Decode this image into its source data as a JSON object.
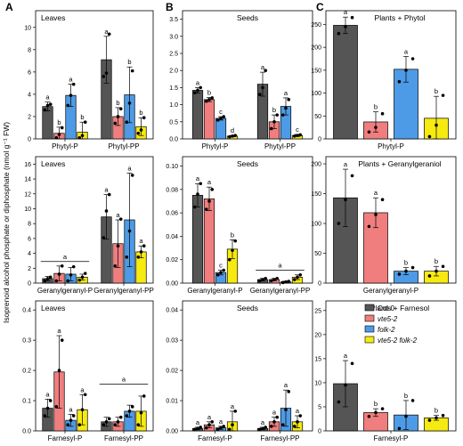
{
  "figure": {
    "ylabel": "Isoprenoid alcohol phosphate or diphosphate (nmol g⁻¹ FW)",
    "columns": [
      "A",
      "B",
      "C"
    ]
  },
  "legend": {
    "entries": [
      {
        "label": "Col-0",
        "color": "#555555",
        "italic": false
      },
      {
        "label": "vte5-2",
        "color": "#f07e7e",
        "italic": true
      },
      {
        "label": "folk-2",
        "color": "#4d9be6",
        "italic": true
      },
      {
        "label": "vte5-2 folk-2",
        "color": "#f6ea10",
        "italic": true
      }
    ]
  },
  "chart_data": [
    {
      "id": "A1",
      "type": "bar",
      "title": "Leaves",
      "yticks": [
        0,
        2,
        4,
        6,
        8,
        10
      ],
      "ylim": [
        0,
        11.5
      ],
      "categories": [
        "Phytyl-P",
        "Phytyl-PP"
      ],
      "series": [
        {
          "name": "Col-0",
          "values": [
            2.9,
            7.1
          ],
          "errors": [
            0.4,
            2.1
          ],
          "points": [
            [
              2.6,
              3.0,
              3.1
            ],
            [
              5.6,
              5.9,
              9.4
            ]
          ],
          "letters": [
            "a",
            "a"
          ]
        },
        {
          "name": "vte5-2",
          "values": [
            0.5,
            2.0
          ],
          "errors": [
            0.55,
            0.8
          ],
          "points": [
            [
              0.1,
              0.4,
              1.0
            ],
            [
              1.4,
              2.0,
              2.7
            ]
          ],
          "letters": [
            "b",
            "b"
          ]
        },
        {
          "name": "folk-2",
          "values": [
            3.9,
            3.95
          ],
          "errors": [
            1.0,
            2.5
          ],
          "points": [
            [
              3.0,
              3.9,
              4.9
            ],
            [
              1.5,
              3.2,
              6.1
            ]
          ],
          "letters": [
            "a",
            "b"
          ]
        },
        {
          "name": "vte5-2 folk-2",
          "values": [
            0.6,
            1.1
          ],
          "errors": [
            0.9,
            0.8
          ],
          "points": [
            [
              0.1,
              0.3,
              1.5
            ],
            [
              0.5,
              0.8,
              1.9
            ]
          ],
          "letters": [
            "b",
            "b"
          ]
        }
      ],
      "letter_extra": [
        {
          "cat": 1,
          "series": 2,
          "text": "a"
        },
        {
          "cat": 1,
          "series": 3,
          "text": "a"
        }
      ]
    },
    {
      "id": "B1",
      "type": "bar",
      "title": "Seeds",
      "yticks": [
        0,
        0.5,
        1.0,
        1.5,
        2.0,
        2.5,
        3.0,
        3.5
      ],
      "ylim": [
        0,
        3.75
      ],
      "categories": [
        "Phytyl-P",
        "Phytyl-PP"
      ],
      "series": [
        {
          "name": "Col-0",
          "values": [
            1.42,
            1.6
          ],
          "errors": [
            0.08,
            0.35
          ],
          "points": [
            [
              1.35,
              1.42,
              1.5
            ],
            [
              1.3,
              1.5,
              2.0
            ]
          ],
          "letters": [
            "a",
            "a"
          ]
        },
        {
          "name": "vte5-2",
          "values": [
            1.15,
            0.5
          ],
          "errors": [
            0.06,
            0.2
          ],
          "points": [
            [
              1.1,
              1.15,
              1.2
            ],
            [
              0.3,
              0.5,
              0.7
            ]
          ],
          "letters": [
            "b",
            "b"
          ]
        },
        {
          "name": "folk-2",
          "values": [
            0.6,
            0.95
          ],
          "errors": [
            0.05,
            0.25
          ],
          "points": [
            [
              0.55,
              0.6,
              0.65
            ],
            [
              0.7,
              0.9,
              1.15
            ]
          ],
          "letters": [
            "c",
            "a"
          ]
        },
        {
          "name": "vte5-2 folk-2",
          "values": [
            0.08,
            0.1
          ],
          "errors": [
            0.02,
            0.03
          ],
          "points": [
            [
              0.06,
              0.08,
              0.1
            ],
            [
              0.08,
              0.1,
              0.12
            ]
          ],
          "letters": [
            "d",
            "c"
          ]
        }
      ]
    },
    {
      "id": "C1",
      "type": "bar",
      "title": "Plants + Phytol",
      "yticks": [
        0,
        50,
        100,
        150,
        200,
        250
      ],
      "ylim": [
        0,
        280
      ],
      "categories": [
        "Phytyl-P"
      ],
      "series": [
        {
          "name": "Col-0",
          "values": [
            248
          ],
          "errors": [
            18
          ],
          "points": [
            [
              230,
              245,
              265
            ]
          ],
          "letters": [
            "a"
          ]
        },
        {
          "name": "vte5-2",
          "values": [
            37
          ],
          "errors": [
            22
          ],
          "points": [
            [
              15,
              25,
              55
            ]
          ],
          "letters": [
            "b"
          ]
        },
        {
          "name": "folk-2",
          "values": [
            152
          ],
          "errors": [
            28
          ],
          "points": [
            [
              125,
              150,
              175
            ]
          ],
          "letters": [
            "a"
          ]
        },
        {
          "name": "vte5-2 folk-2",
          "values": [
            45
          ],
          "errors": [
            48
          ],
          "points": [
            [
              5,
              30,
              95
            ]
          ],
          "letters": [
            "b"
          ]
        }
      ]
    },
    {
      "id": "A2",
      "type": "bar",
      "title": "Leaves",
      "yticks": [
        0,
        2,
        4,
        6,
        8,
        10,
        12,
        14,
        16
      ],
      "ylim": [
        0,
        17
      ],
      "categories": [
        "Geranylgeranyl-P",
        "Geranylgeranyl-PP"
      ],
      "series": [
        {
          "name": "Col-0",
          "values": [
            0.6,
            8.9
          ],
          "errors": [
            0.3,
            3.0
          ],
          "points": [
            [
              0.3,
              0.6,
              0.8
            ],
            [
              6.1,
              9.7,
              11.9
            ]
          ],
          "letters": [
            "",
            "a"
          ]
        },
        {
          "name": "vte5-2",
          "values": [
            1.3,
            5.3
          ],
          "errors": [
            1.0,
            3.2
          ],
          "points": [
            [
              0.3,
              1.2,
              2.3
            ],
            [
              2.3,
              5.0,
              8.6
            ]
          ],
          "letters": [
            "",
            "a"
          ]
        },
        {
          "name": "folk-2",
          "values": [
            1.2,
            8.5
          ],
          "errors": [
            0.9,
            6.3
          ],
          "points": [
            [
              0.3,
              1.1,
              2.2
            ],
            [
              3.5,
              7.0,
              14.5
            ]
          ],
          "letters": [
            "",
            "a"
          ]
        },
        {
          "name": "vte5-2 folk-2",
          "values": [
            0.8,
            4.2
          ],
          "errors": [
            0.4,
            0.8
          ],
          "points": [
            [
              0.4,
              0.8,
              1.3
            ],
            [
              3.5,
              4.2,
              5.0
            ]
          ],
          "letters": [
            "",
            "a"
          ]
        }
      ],
      "bracket": {
        "cat": 0,
        "value": 2.9,
        "text": "a"
      }
    },
    {
      "id": "B2",
      "type": "bar",
      "title": "Seeds",
      "yticks": [
        0,
        0.02,
        0.04,
        0.06,
        0.08,
        0.1
      ],
      "ylim": [
        0,
        0.108
      ],
      "categories": [
        "Geranylgeranyl-P",
        "Geranylgeranyl-PP"
      ],
      "series": [
        {
          "name": "Col-0",
          "values": [
            0.075,
            0.003
          ],
          "errors": [
            0.01,
            0.001
          ],
          "points": [
            [
              0.065,
              0.076,
              0.085
            ],
            [
              0.002,
              0.003,
              0.004
            ]
          ],
          "letters": [
            "a",
            ""
          ]
        },
        {
          "name": "vte5-2",
          "values": [
            0.072,
            0.003
          ],
          "errors": [
            0.01,
            0.001
          ],
          "points": [
            [
              0.063,
              0.07,
              0.08
            ],
            [
              0.002,
              0.003,
              0.004
            ]
          ],
          "letters": [
            "a",
            ""
          ]
        },
        {
          "name": "folk-2",
          "values": [
            0.009,
            0.001
          ],
          "errors": [
            0.002,
            0.0005
          ],
          "points": [
            [
              0.007,
              0.009,
              0.011
            ],
            [
              0.0005,
              0.001,
              0.0015
            ]
          ],
          "letters": [
            "c",
            ""
          ]
        },
        {
          "name": "vte5-2 folk-2",
          "values": [
            0.029,
            0.005
          ],
          "errors": [
            0.008,
            0.002
          ],
          "points": [
            [
              0.02,
              0.028,
              0.036
            ],
            [
              0.003,
              0.005,
              0.007
            ]
          ],
          "letters": [
            "b",
            ""
          ]
        }
      ],
      "bracket": {
        "cat": 1,
        "value": 0.011,
        "text": "a"
      }
    },
    {
      "id": "C2",
      "type": "bar",
      "title": "Plants + Geranylgeraniol",
      "yticks": [
        0,
        50,
        100,
        150,
        200
      ],
      "ylim": [
        0,
        212
      ],
      "categories": [
        "Geranylgeranyl-P"
      ],
      "series": [
        {
          "name": "Col-0",
          "values": [
            143
          ],
          "errors": [
            48
          ],
          "points": [
            [
              100,
              140,
              180
            ]
          ],
          "letters": [
            "a"
          ]
        },
        {
          "name": "vte5-2",
          "values": [
            118
          ],
          "errors": [
            25
          ],
          "points": [
            [
              95,
              115,
              140
            ]
          ],
          "letters": [
            "a"
          ]
        },
        {
          "name": "folk-2",
          "values": [
            20
          ],
          "errors": [
            6
          ],
          "points": [
            [
              15,
              20,
              26
            ]
          ],
          "letters": [
            "b"
          ]
        },
        {
          "name": "vte5-2 folk-2",
          "values": [
            20
          ],
          "errors": [
            8
          ],
          "points": [
            [
              12,
              20,
              28
            ]
          ],
          "letters": [
            "b"
          ]
        }
      ]
    },
    {
      "id": "A3",
      "type": "bar",
      "title": "Leaves",
      "yticks": [
        0,
        0.1,
        0.2,
        0.3,
        0.4
      ],
      "ylim": [
        0,
        0.43
      ],
      "categories": [
        "Farnesyl-P",
        "Farnesyl-PP"
      ],
      "series": [
        {
          "name": "Col-0",
          "values": [
            0.075,
            0.03
          ],
          "errors": [
            0.03,
            0.015
          ],
          "points": [
            [
              0.05,
              0.075,
              0.1
            ],
            [
              0.02,
              0.03,
              0.04
            ]
          ],
          "letters": [
            "a",
            ""
          ]
        },
        {
          "name": "vte5-2",
          "values": [
            0.195,
            0.03
          ],
          "errors": [
            0.12,
            0.015
          ],
          "points": [
            [
              0.08,
              0.2,
              0.3
            ],
            [
              0.02,
              0.03,
              0.045
            ]
          ],
          "letters": [
            "a",
            ""
          ]
        },
        {
          "name": "folk-2",
          "values": [
            0.035,
            0.065
          ],
          "errors": [
            0.02,
            0.02
          ],
          "points": [
            [
              0.02,
              0.035,
              0.05
            ],
            [
              0.05,
              0.065,
              0.08
            ]
          ],
          "letters": [
            "a",
            ""
          ]
        },
        {
          "name": "vte5-2 folk-2",
          "values": [
            0.07,
            0.065
          ],
          "errors": [
            0.05,
            0.05
          ],
          "points": [
            [
              0.02,
              0.07,
              0.12
            ],
            [
              0.02,
              0.06,
              0.115
            ]
          ],
          "letters": [
            "a",
            ""
          ]
        }
      ],
      "bracket": {
        "cat": 1,
        "value": 0.155,
        "text": "a"
      }
    },
    {
      "id": "B3",
      "type": "bar",
      "title": "Seeds",
      "yticks": [
        0,
        0.01,
        0.02,
        0.03,
        0.04
      ],
      "ylim": [
        0,
        0.043
      ],
      "categories": [
        "Farnesyl-P",
        "Farnesyl-PP"
      ],
      "series": [
        {
          "name": "Col-0",
          "values": [
            0.0008,
            0.0008
          ],
          "errors": [
            0.0004,
            0.0004
          ],
          "points": [
            [
              0.0005,
              0.0008,
              0.0012
            ],
            [
              0.0005,
              0.0008,
              0.0012
            ]
          ],
          "letters": [
            "a",
            "a"
          ]
        },
        {
          "name": "vte5-2",
          "values": [
            0.002,
            0.003
          ],
          "errors": [
            0.001,
            0.0015
          ],
          "points": [
            [
              0.001,
              0.002,
              0.003
            ],
            [
              0.0015,
              0.003,
              0.0045
            ]
          ],
          "letters": [
            "a",
            "a"
          ]
        },
        {
          "name": "folk-2",
          "values": [
            0.001,
            0.0075
          ],
          "errors": [
            0.0005,
            0.006
          ],
          "points": [
            [
              0.0005,
              0.001,
              0.0015
            ],
            [
              0.002,
              0.007,
              0.013
            ]
          ],
          "letters": [
            "a",
            "a"
          ]
        },
        {
          "name": "vte5-2 folk-2",
          "values": [
            0.003,
            0.003
          ],
          "errors": [
            0.0035,
            0.002
          ],
          "points": [
            [
              0.0005,
              0.002,
              0.0065
            ],
            [
              0.0015,
              0.003,
              0.005
            ]
          ],
          "letters": [
            "a",
            "a"
          ]
        }
      ]
    },
    {
      "id": "C3",
      "type": "bar",
      "title": "Plants + Farnesol",
      "yticks": [
        0,
        5,
        10,
        15,
        20,
        25
      ],
      "ylim": [
        0,
        27
      ],
      "categories": [
        "Farnesyl-P"
      ],
      "series": [
        {
          "name": "Col-0",
          "values": [
            9.8
          ],
          "errors": [
            4.8
          ],
          "points": [
            [
              6.0,
              9.5,
              14.0
            ]
          ],
          "letters": [
            "a"
          ]
        },
        {
          "name": "vte5-2",
          "values": [
            3.8
          ],
          "errors": [
            0.8
          ],
          "points": [
            [
              3.0,
              3.8,
              4.6
            ]
          ],
          "letters": [
            "b"
          ]
        },
        {
          "name": "folk-2",
          "values": [
            3.3
          ],
          "errors": [
            3.0
          ],
          "points": [
            [
              0.5,
              3.0,
              6.3
            ]
          ],
          "letters": [
            "b"
          ]
        },
        {
          "name": "vte5-2 folk-2",
          "values": [
            2.7
          ],
          "errors": [
            0.5
          ],
          "points": [
            [
              2.2,
              2.7,
              3.2
            ]
          ],
          "letters": [
            "b"
          ]
        }
      ]
    }
  ]
}
